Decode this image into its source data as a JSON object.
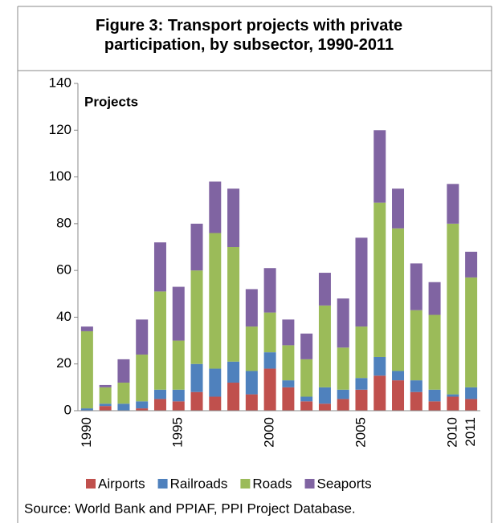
{
  "chart_data": {
    "type": "stacked_bar",
    "title": "Figure 3: Transport projects with private participation, by subsector, 1990-2011",
    "y_label": "Projects",
    "source": "Source:  World Bank and PPIAF, PPI Project Database.",
    "categories": [
      "1990",
      null,
      null,
      null,
      null,
      "1995",
      null,
      null,
      null,
      null,
      "2000",
      null,
      null,
      null,
      null,
      "2005",
      null,
      null,
      null,
      null,
      "2010",
      "2011"
    ],
    "series": [
      {
        "name": "Airports",
        "color": "#c0504d",
        "values": [
          0,
          2,
          0,
          1,
          5,
          4,
          8,
          6,
          12,
          7,
          18,
          10,
          4,
          3,
          5,
          9,
          15,
          13,
          8,
          4,
          6,
          5
        ]
      },
      {
        "name": "Railroads",
        "color": "#4f81bd",
        "values": [
          1,
          1,
          3,
          3,
          4,
          5,
          12,
          12,
          9,
          10,
          7,
          3,
          2,
          7,
          4,
          5,
          8,
          4,
          5,
          5,
          1,
          5
        ]
      },
      {
        "name": "Roads",
        "color": "#9bbb59",
        "values": [
          33,
          7,
          9,
          20,
          42,
          21,
          40,
          58,
          49,
          19,
          17,
          15,
          16,
          35,
          18,
          22,
          66,
          61,
          30,
          32,
          73,
          47
        ]
      },
      {
        "name": "Seaports",
        "color": "#8064a2",
        "values": [
          2,
          1,
          10,
          15,
          21,
          23,
          20,
          22,
          25,
          16,
          19,
          11,
          11,
          14,
          21,
          38,
          31,
          17,
          20,
          14,
          17,
          11
        ]
      }
    ],
    "ylim": [
      0,
      140
    ],
    "yticks": [
      0,
      20,
      40,
      60,
      80,
      100,
      120,
      140
    ],
    "grid": false,
    "legend": "bottom"
  }
}
